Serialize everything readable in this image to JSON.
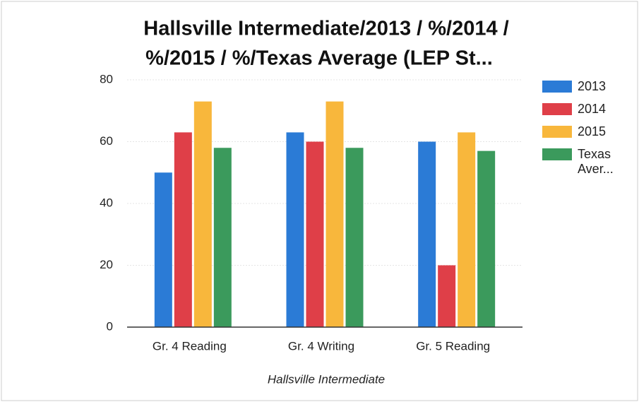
{
  "chart_data": {
    "type": "bar",
    "title": [
      "Hallsville Intermediate/2013 / %/2014 /",
      "%/2015 / %/Texas Average (LEP St..."
    ],
    "x_label": "Hallsville Intermediate",
    "categories": [
      "Gr. 4 Reading",
      "Gr. 4 Writing",
      "Gr. 5 Reading"
    ],
    "series": [
      {
        "name": "2013",
        "color": "#2b7bd6",
        "values": [
          50,
          63,
          60
        ]
      },
      {
        "name": "2014",
        "color": "#df3f48",
        "values": [
          63,
          60,
          20
        ]
      },
      {
        "name": "2015",
        "color": "#f8b73c",
        "values": [
          73,
          73,
          63
        ]
      },
      {
        "name": "Texas Aver...",
        "color": "#3b9a5c",
        "values": [
          58,
          58,
          57
        ]
      }
    ],
    "ylim": [
      0,
      80
    ],
    "yticks": [
      0,
      20,
      40,
      60,
      80
    ],
    "grid": true,
    "legend": "right"
  }
}
